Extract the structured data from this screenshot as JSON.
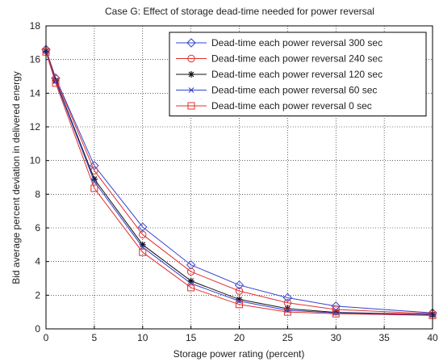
{
  "chart_data": {
    "type": "line",
    "title": "Case G: Effect of storage dead-time needed for power reversal",
    "xlabel": "Storage power rating (percent)",
    "ylabel": "Bid average percent deviation in delivered energy",
    "xlim": [
      0,
      40
    ],
    "ylim": [
      0,
      18
    ],
    "xticks": [
      0,
      5,
      10,
      15,
      20,
      25,
      30,
      35,
      40
    ],
    "yticks": [
      0,
      2,
      4,
      6,
      8,
      10,
      12,
      14,
      16,
      18
    ],
    "grid": true,
    "legend_position": "top-right",
    "x": [
      0,
      1,
      5,
      10,
      15,
      20,
      25,
      30,
      40
    ],
    "series": [
      {
        "name": "Dead-time each power reversal 300 sec",
        "color": "#3344cc",
        "marker": "diamond",
        "values": [
          16.6,
          14.9,
          9.7,
          6.05,
          3.8,
          2.6,
          1.85,
          1.35,
          0.95
        ]
      },
      {
        "name": "Dead-time each power reversal 240 sec",
        "color": "#e03030",
        "marker": "circle",
        "values": [
          16.55,
          14.85,
          9.4,
          5.6,
          3.4,
          2.25,
          1.55,
          1.15,
          0.9
        ]
      },
      {
        "name": "Dead-time each power reversal 120 sec",
        "color": "#111111",
        "marker": "star",
        "values": [
          16.5,
          14.75,
          8.9,
          5.0,
          2.85,
          1.75,
          1.2,
          0.98,
          0.85
        ]
      },
      {
        "name": "Dead-time each power reversal 60 sec",
        "color": "#3344cc",
        "marker": "x",
        "values": [
          16.5,
          14.7,
          8.75,
          4.85,
          2.7,
          1.65,
          1.1,
          0.95,
          0.82
        ]
      },
      {
        "name": "Dead-time each power reversal 0 sec",
        "color": "#e03030",
        "marker": "square",
        "values": [
          16.45,
          14.6,
          8.35,
          4.55,
          2.45,
          1.45,
          1.0,
          0.9,
          0.8
        ]
      }
    ]
  }
}
